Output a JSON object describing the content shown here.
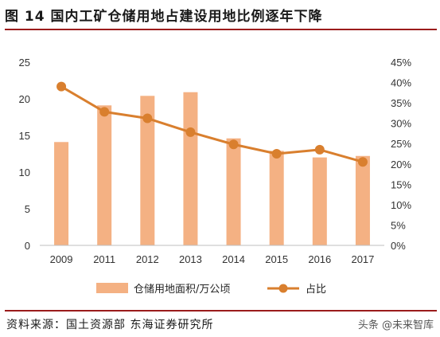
{
  "header": {
    "title": "图 14 国内工矿仓储用地占建设用地比例逐年下降"
  },
  "footer": {
    "source": "资料来源：国土资源部 东海证券研究所",
    "watermark": "头条 @未来智库"
  },
  "colors": {
    "bar": "#f4b183",
    "line": "#d97f2e",
    "axis": "#bfbfbf",
    "rule": "#9b1c1c"
  },
  "chart_data": {
    "type": "bar",
    "categories": [
      "2009",
      "2011",
      "2012",
      "2013",
      "2014",
      "2015",
      "2016",
      "2017"
    ],
    "series": [
      {
        "name": "仓储用地面积/万公顷",
        "type": "bar",
        "axis": "left",
        "values": [
          14.1,
          19.1,
          20.4,
          20.9,
          14.6,
          12.9,
          12.0,
          12.2
        ]
      },
      {
        "name": "占比",
        "type": "line",
        "axis": "right",
        "values": [
          39.0,
          32.8,
          31.2,
          27.8,
          24.8,
          22.5,
          23.5,
          20.5
        ]
      }
    ],
    "y_left": {
      "min": 0,
      "max": 25,
      "ticks": [
        "0",
        "5",
        "10",
        "15",
        "20",
        "25"
      ]
    },
    "y_right": {
      "min": 0,
      "max": 45,
      "ticks": [
        "0%",
        "5%",
        "10%",
        "15%",
        "20%",
        "25%",
        "30%",
        "35%",
        "40%",
        "45%"
      ]
    },
    "legend": "bottom",
    "grid": false
  }
}
